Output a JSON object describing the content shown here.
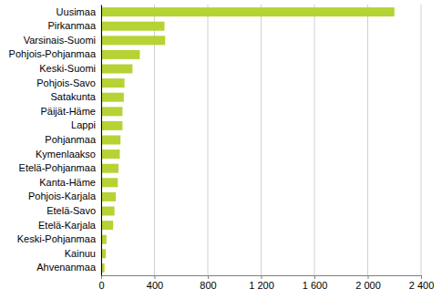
{
  "chart_data": {
    "type": "bar",
    "orientation": "horizontal",
    "categories": [
      "Uusimaa",
      "Pirkanmaa",
      "Varsinais-Suomi",
      "Pohjois-Pohjanmaa",
      "Keski-Suomi",
      "Pohjois-Savo",
      "Satakunta",
      "Päijät-Häme",
      "Lappi",
      "Pohjanmaa",
      "Kymenlaakso",
      "Etelä-Pohjanmaa",
      "Kanta-Häme",
      "Pohjois-Karjala",
      "Etelä-Savo",
      "Etelä-Karjala",
      "Keski-Pohjanmaa",
      "Kainuu",
      "Ahvenanmaa"
    ],
    "values": [
      2200,
      475,
      480,
      290,
      235,
      175,
      170,
      160,
      160,
      145,
      140,
      130,
      125,
      110,
      100,
      90,
      40,
      35,
      25
    ],
    "color": "#b5d334",
    "xlim": [
      0,
      2400
    ],
    "xticks": [
      0,
      400,
      800,
      {
        "value": 1200,
        "label": "1 200"
      },
      {
        "value": 1600,
        "label": "1 600"
      },
      {
        "value": 2000,
        "label": "2 000"
      },
      {
        "value": 2400,
        "label": "2 400"
      }
    ],
    "grid": true
  }
}
